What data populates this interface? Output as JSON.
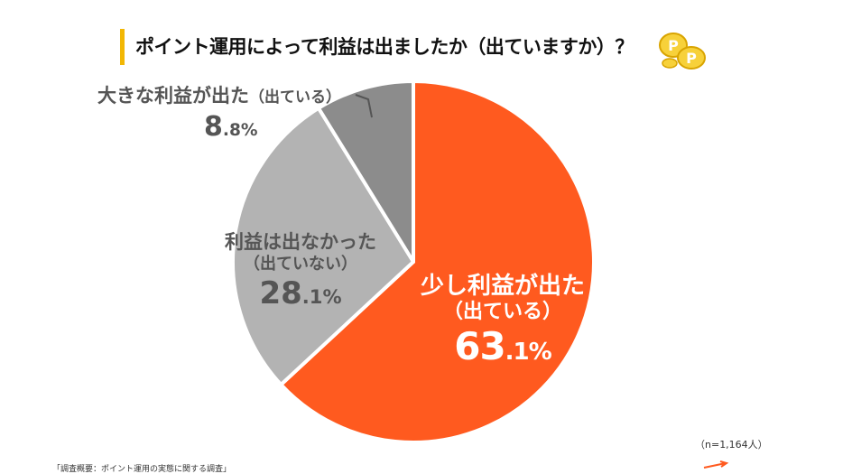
{
  "title": "ポイント運用によって利益は出ましたか（出ていますか）？",
  "sample_note": "（n=1,164人）",
  "source_note": "「調査概要：ポイント運用の実態に関する調査」",
  "colors": {
    "accent_bar": "#f2b705",
    "slice_large": "#ff5a1f",
    "slice_mid": "#b3b3b3",
    "slice_small": "#8c8c8c",
    "label_gray": "#555555"
  },
  "icons": {
    "decoration": "gold-coins-icon"
  },
  "chart_data": {
    "type": "pie",
    "title": "ポイント運用によって利益は出ましたか（出ていますか）？",
    "slices": [
      {
        "line1": "少し利益が出た",
        "line2": "（出ている）",
        "value": 63.1,
        "int": "63",
        "dec": ".1%"
      },
      {
        "line1": "利益は出なかった",
        "line2": "（出ていない）",
        "value": 28.1,
        "int": "28",
        "dec": ".1%"
      },
      {
        "line1": "大きな利益が出た",
        "line2": "（出ている）",
        "value": 8.8,
        "int": "8",
        "dec": ".8%"
      }
    ]
  }
}
